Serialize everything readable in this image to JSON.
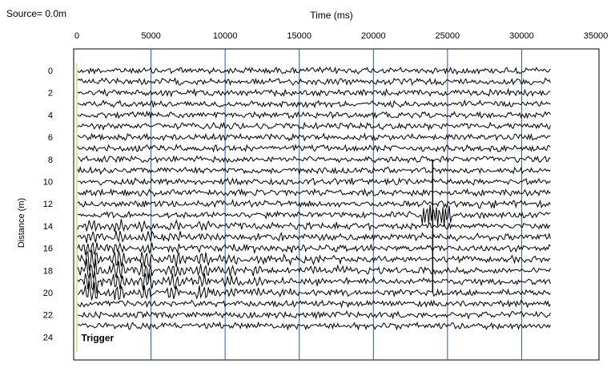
{
  "source_label": "Source=  0.0m",
  "chart_data": {
    "type": "seismic-trace",
    "title": "",
    "xlabel": "Time (ms)",
    "ylabel": "Distance (m)",
    "xlim": [
      0,
      35000
    ],
    "ylim": [
      0,
      25
    ],
    "x_ticks": [
      0,
      5000,
      10000,
      15000,
      20000,
      25000,
      30000,
      35000
    ],
    "y_ticks": [
      0,
      2,
      4,
      6,
      8,
      10,
      12,
      14,
      16,
      18,
      20,
      22,
      24
    ],
    "record_end_ms": 32000,
    "trace_spacing_m": 1,
    "trace_distances_m": [
      0,
      1,
      2,
      3,
      4,
      5,
      6,
      7,
      8,
      9,
      10,
      11,
      12,
      13,
      14,
      15,
      16,
      17,
      18,
      19,
      20,
      21,
      22,
      23
    ],
    "vertical_grid": true,
    "grid_color": "#1f5fa8",
    "trigger_line_color": "#cccc33",
    "annotations": [
      {
        "text": "Trigger",
        "x": 300,
        "y": 24
      }
    ]
  }
}
